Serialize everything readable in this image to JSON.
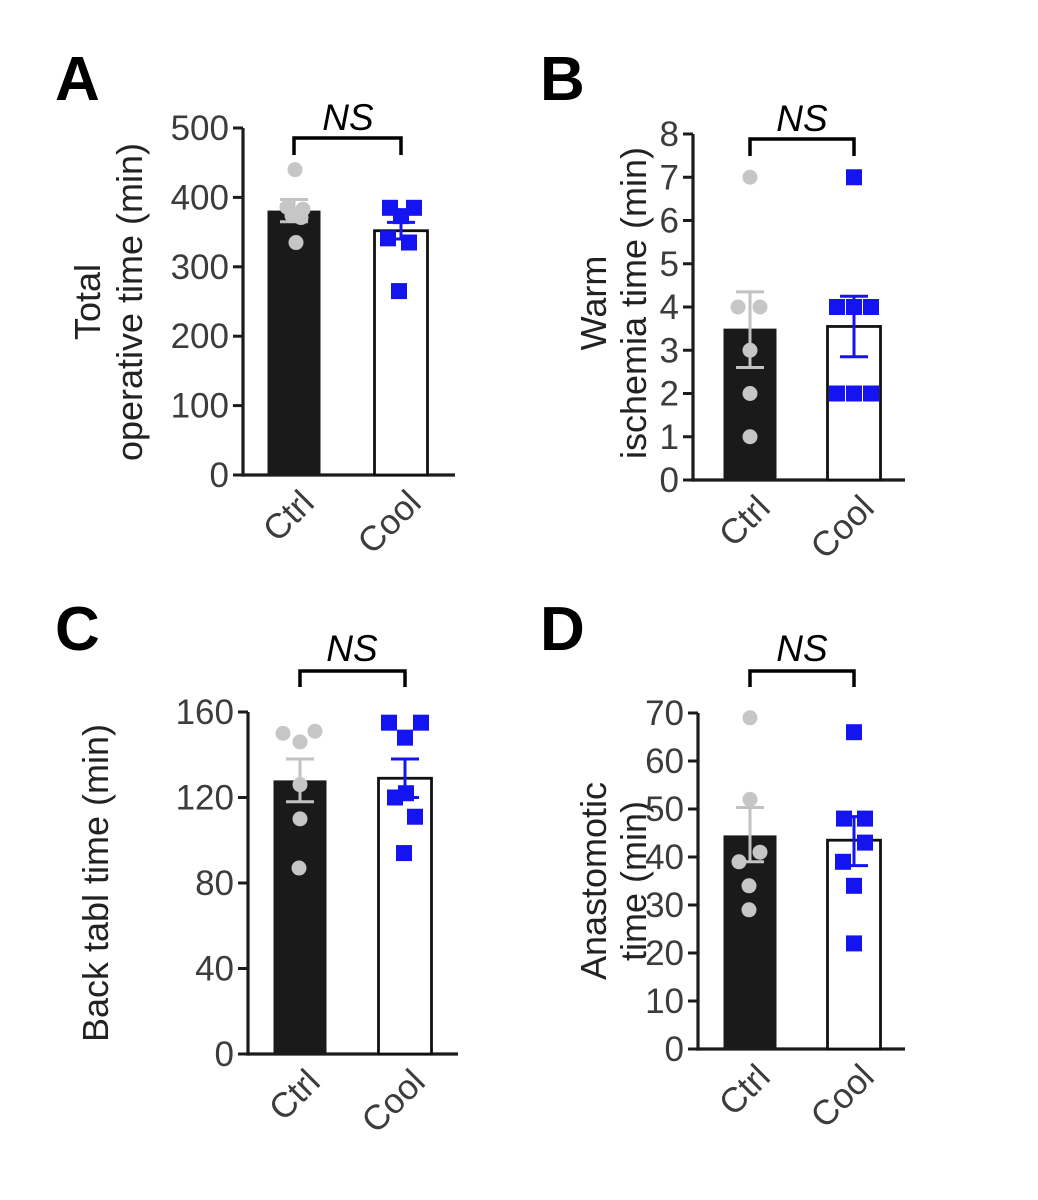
{
  "figure": {
    "background": "#ffffff",
    "colors": {
      "ctrl_bar": "#1a1a1a",
      "ctrl_marker": "#c6c6c6",
      "ctrl_error": "#c2c2c2",
      "cool_fill": "#ffffff",
      "cool_marker": "#1414f0",
      "cool_stroke": "#111111",
      "axis": "#1c1c1c",
      "tick_text": "#3c3c3c",
      "label_text": "#222222",
      "annotation_text": "#000000"
    }
  },
  "chart_data": [
    {
      "panel": "A",
      "type": "bar",
      "title": "",
      "ylabel": "Total operative time (min)",
      "ylabel_lines": [
        "Total",
        "operative time (min)"
      ],
      "categories": [
        "Ctrl",
        "Cool"
      ],
      "ylim": [
        0,
        500
      ],
      "yticks": [
        0,
        100,
        200,
        300,
        400,
        500
      ],
      "annotation": "NS",
      "legend": "none",
      "grid": false,
      "series": [
        {
          "name": "Ctrl",
          "marker": "circle",
          "bar_mean": 381,
          "error": [
            365,
            397
          ],
          "points": [
            {
              "v": 440,
              "dx": 1
            },
            {
              "v": 386,
              "dx": -7
            },
            {
              "v": 383,
              "dx": 9
            },
            {
              "v": 374,
              "dx": -2
            },
            {
              "v": 371,
              "dx": 7
            },
            {
              "v": 335,
              "dx": 2
            }
          ]
        },
        {
          "name": "Cool",
          "marker": "square",
          "bar_mean": 352,
          "error": [
            340,
            364
          ],
          "points": [
            {
              "v": 385,
              "dx": -11
            },
            {
              "v": 385,
              "dx": 13
            },
            {
              "v": 373,
              "dx": 0
            },
            {
              "v": 341,
              "dx": -13
            },
            {
              "v": 335,
              "dx": 8
            },
            {
              "v": 265,
              "dx": -2
            }
          ]
        }
      ]
    },
    {
      "panel": "B",
      "type": "bar",
      "title": "",
      "ylabel": "Warm ischemia time (min)",
      "ylabel_lines": [
        "Warm",
        "ischemia time (min)"
      ],
      "categories": [
        "Ctrl",
        "Cool"
      ],
      "ylim": [
        0,
        8
      ],
      "yticks": [
        0,
        1,
        2,
        3,
        4,
        5,
        6,
        7,
        8
      ],
      "annotation": "NS",
      "legend": "none",
      "grid": false,
      "series": [
        {
          "name": "Ctrl",
          "marker": "circle",
          "bar_mean": 3.5,
          "error": [
            2.6,
            4.35
          ],
          "points": [
            {
              "v": 7,
              "dx": 0
            },
            {
              "v": 4,
              "dx": -12
            },
            {
              "v": 4,
              "dx": 10
            },
            {
              "v": 3,
              "dx": 0
            },
            {
              "v": 2,
              "dx": 0
            },
            {
              "v": 1,
              "dx": 0
            }
          ]
        },
        {
          "name": "Cool",
          "marker": "square",
          "bar_mean": 3.55,
          "error": [
            2.85,
            4.25
          ],
          "points": [
            {
              "v": 7,
              "dx": 0
            },
            {
              "v": 4,
              "dx": -17
            },
            {
              "v": 4,
              "dx": 0
            },
            {
              "v": 4,
              "dx": 17
            },
            {
              "v": 2,
              "dx": -17
            },
            {
              "v": 2,
              "dx": 0
            },
            {
              "v": 2,
              "dx": 17
            }
          ]
        }
      ]
    },
    {
      "panel": "C",
      "type": "bar",
      "title": "",
      "ylabel": "Back tabl time (min)",
      "ylabel_lines": [
        "Back tabl time (min)"
      ],
      "categories": [
        "Ctrl",
        "Cool"
      ],
      "ylim": [
        0,
        160
      ],
      "yticks": [
        0,
        40,
        80,
        120,
        160
      ],
      "annotation": "NS",
      "legend": "none",
      "grid": false,
      "series": [
        {
          "name": "Ctrl",
          "marker": "circle",
          "bar_mean": 128,
          "error": [
            118,
            138
          ],
          "points": [
            {
              "v": 151,
              "dx": 15
            },
            {
              "v": 150,
              "dx": -17
            },
            {
              "v": 146,
              "dx": 0
            },
            {
              "v": 126,
              "dx": 0
            },
            {
              "v": 110,
              "dx": 0
            },
            {
              "v": 87,
              "dx": -1
            }
          ]
        },
        {
          "name": "Cool",
          "marker": "square",
          "bar_mean": 129,
          "error": [
            120,
            138
          ],
          "points": [
            {
              "v": 155,
              "dx": -16
            },
            {
              "v": 155,
              "dx": 16
            },
            {
              "v": 148,
              "dx": 0
            },
            {
              "v": 122,
              "dx": 1
            },
            {
              "v": 120,
              "dx": -10
            },
            {
              "v": 111,
              "dx": 10
            },
            {
              "v": 94,
              "dx": -1
            }
          ]
        }
      ]
    },
    {
      "panel": "D",
      "type": "bar",
      "title": "",
      "ylabel": "Anastomotic time (min)",
      "ylabel_lines": [
        "Anastomotic",
        "time (min)"
      ],
      "categories": [
        "Ctrl",
        "Cool"
      ],
      "ylim": [
        0,
        70
      ],
      "yticks": [
        0,
        10,
        20,
        30,
        40,
        50,
        60,
        70
      ],
      "annotation": "NS",
      "legend": "none",
      "grid": false,
      "series": [
        {
          "name": "Ctrl",
          "marker": "circle",
          "bar_mean": 44.5,
          "error": [
            39,
            50.3
          ],
          "points": [
            {
              "v": 69,
              "dx": 0
            },
            {
              "v": 52,
              "dx": 0
            },
            {
              "v": 41,
              "dx": 10
            },
            {
              "v": 39,
              "dx": -11
            },
            {
              "v": 34,
              "dx": -1
            },
            {
              "v": 29,
              "dx": -1
            }
          ]
        },
        {
          "name": "Cool",
          "marker": "square",
          "bar_mean": 43.5,
          "error": [
            38.2,
            48.4
          ],
          "points": [
            {
              "v": 66,
              "dx": 0
            },
            {
              "v": 48,
              "dx": -10
            },
            {
              "v": 48,
              "dx": 11
            },
            {
              "v": 43,
              "dx": 11
            },
            {
              "v": 39,
              "dx": -11
            },
            {
              "v": 34,
              "dx": 0
            },
            {
              "v": 22,
              "dx": 0
            }
          ]
        }
      ]
    }
  ]
}
